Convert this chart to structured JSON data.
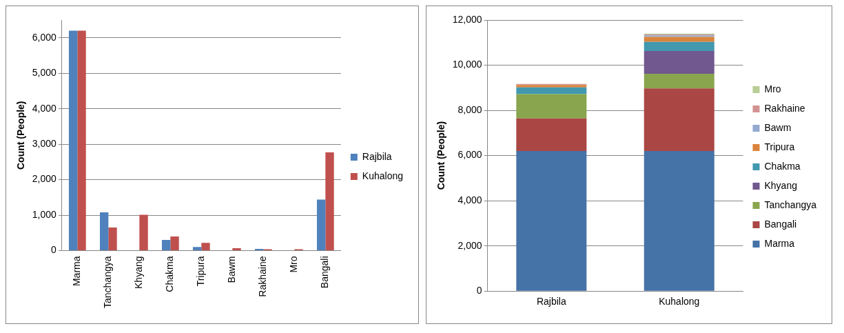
{
  "chart_data": [
    {
      "type": "bar",
      "ylabel": "Count (People)",
      "categories": [
        "Marma",
        "Tanchangya",
        "Khyang",
        "Chakma",
        "Tripura",
        "Bawm",
        "Rakhaine",
        "Mro",
        "Bangali"
      ],
      "series": [
        {
          "name": "Rajbila",
          "color": "#4f81bd",
          "values": [
            6200,
            1080,
            0,
            300,
            100,
            0,
            50,
            0,
            1440
          ]
        },
        {
          "name": "Kuhalong",
          "color": "#c0504d",
          "values": [
            6200,
            650,
            1010,
            400,
            220,
            70,
            40,
            40,
            2770
          ]
        }
      ],
      "ylim": [
        0,
        6500
      ],
      "yticks": [
        {
          "value": 0,
          "label": "0"
        },
        {
          "value": 1000,
          "label": "1,000"
        },
        {
          "value": 2000,
          "label": "2,000"
        },
        {
          "value": 3000,
          "label": "3,000"
        },
        {
          "value": 4000,
          "label": "4,000"
        },
        {
          "value": 5000,
          "label": "5,000"
        },
        {
          "value": 6000,
          "label": "6,000"
        }
      ],
      "grid": "y",
      "legend": "right"
    },
    {
      "type": "bar",
      "stacked": true,
      "ylabel": "Count (People)",
      "categories": [
        "Rajbila",
        "Kuhalong"
      ],
      "series": [
        {
          "name": "Marma",
          "color": "#4572a7",
          "values": [
            6200,
            6200
          ]
        },
        {
          "name": "Bangali",
          "color": "#aa4643",
          "values": [
            1440,
            2770
          ]
        },
        {
          "name": "Tanchangya",
          "color": "#89a54e",
          "values": [
            1080,
            650
          ]
        },
        {
          "name": "Khyang",
          "color": "#71588f",
          "values": [
            0,
            1010
          ]
        },
        {
          "name": "Chakma",
          "color": "#4198af",
          "values": [
            300,
            400
          ]
        },
        {
          "name": "Tripura",
          "color": "#db843d",
          "values": [
            100,
            220
          ]
        },
        {
          "name": "Bawm",
          "color": "#93a9cf",
          "values": [
            0,
            70
          ]
        },
        {
          "name": "Rakhaine",
          "color": "#d19392",
          "values": [
            50,
            40
          ]
        },
        {
          "name": "Mro",
          "color": "#b9cd96",
          "values": [
            0,
            40
          ]
        }
      ],
      "ylim": [
        0,
        12000
      ],
      "yticks": [
        {
          "value": 0,
          "label": "0"
        },
        {
          "value": 2000,
          "label": "2,000"
        },
        {
          "value": 4000,
          "label": "4,000"
        },
        {
          "value": 6000,
          "label": "6,000"
        },
        {
          "value": 8000,
          "label": "8,000"
        },
        {
          "value": 10000,
          "label": "10,000"
        },
        {
          "value": 12000,
          "label": "12,000"
        }
      ],
      "grid": "y",
      "legend": "right"
    }
  ]
}
